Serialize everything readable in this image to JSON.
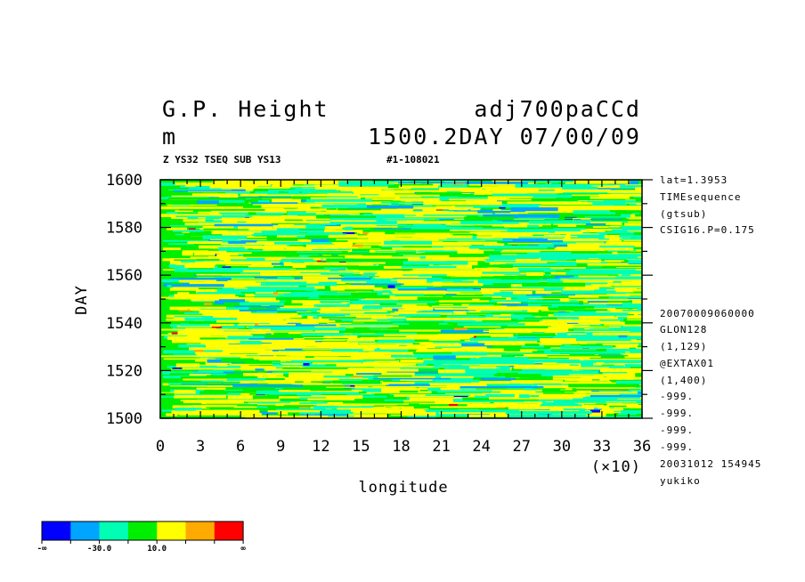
{
  "header": {
    "title_left": "G.P. Height",
    "title_right": "adj700paCCd",
    "units": "m",
    "time_label": "1500.2DAY 07/00/09",
    "sub_left": "Z YS32 TSEQ SUB YS13",
    "sub_right": "#1-108021"
  },
  "info_lines": [
    "lat=1.3953",
    "TIMEsequence",
    "(gtsub)",
    "CSIG16.P=0.175",
    "20070009060000",
    "GLON128",
    "(1,129)",
    "@EXTAX01",
    "(1,400)",
    "-999.",
    "-999.",
    "-999.",
    "-999.",
    "20031012 154945",
    "yukiko"
  ],
  "colorbar": {
    "colors": [
      "#0000ff",
      "#00a5ff",
      "#00ffb4",
      "#00ee00",
      "#ffff00",
      "#ffaa00",
      "#ff0000"
    ],
    "labels": [
      "-∞",
      "-30.0",
      "10.0",
      "∞"
    ]
  },
  "chart_data": {
    "type": "heatmap",
    "xlabel": "longitude",
    "ylabel": "DAY",
    "x_multiplier_label": "(×10)",
    "xlim": [
      0,
      36
    ],
    "ylim": [
      1500,
      1600
    ],
    "x_ticks": [
      "0",
      "3",
      "6",
      "9",
      "12",
      "15",
      "18",
      "21",
      "24",
      "27",
      "30",
      "33",
      "36"
    ],
    "y_ticks": [
      "1500",
      "1520",
      "1540",
      "1560",
      "1580",
      "1600"
    ],
    "dominant_colors": [
      "#00ee00",
      "#ffff00",
      "#00ffb4"
    ],
    "sparse_colors": [
      "#00a5ff",
      "#0000ff",
      "#ffaa00",
      "#ff0000"
    ],
    "pattern": "horizontal streaks, mostly green and yellow with cyan bands and rare blue, orange and red patches"
  }
}
